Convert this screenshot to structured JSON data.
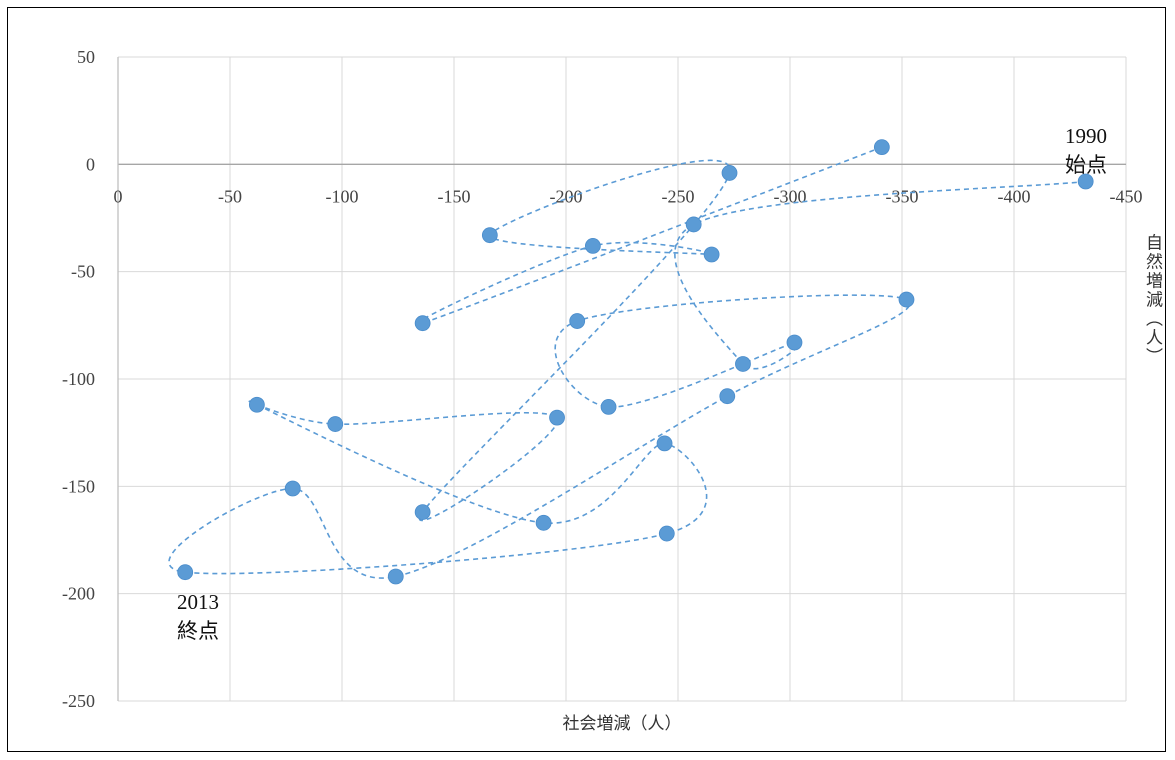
{
  "chart_data": {
    "type": "scatter",
    "xlabel": "社会増減（人）",
    "ylabel": "自然増減（人）",
    "xlim": [
      0,
      -450
    ],
    "ylim": [
      -250,
      50
    ],
    "x_ticks": [
      "0",
      "-50",
      "-100",
      "-150",
      "-200",
      "-250",
      "-300",
      "-350",
      "-400",
      "-450"
    ],
    "y_ticks": [
      "50",
      "0",
      "-50",
      "-100",
      "-150",
      "-200",
      "-250"
    ],
    "grid": true,
    "line_style": "dashed-smooth",
    "marker_color": "#5b9bd5",
    "points": [
      {
        "x": -432,
        "y": -8
      },
      {
        "x": -257,
        "y": -28
      },
      {
        "x": -279,
        "y": -93
      },
      {
        "x": -302,
        "y": -83
      },
      {
        "x": -219,
        "y": -113
      },
      {
        "x": -205,
        "y": -73
      },
      {
        "x": -352,
        "y": -63
      },
      {
        "x": -272,
        "y": -108
      },
      {
        "x": -124,
        "y": -192
      },
      {
        "x": -78,
        "y": -151
      },
      {
        "x": -30,
        "y": -190
      },
      {
        "x": -245,
        "y": -172
      },
      {
        "x": -244,
        "y": -130
      },
      {
        "x": -190,
        "y": -167
      },
      {
        "x": -62,
        "y": -112
      },
      {
        "x": -97,
        "y": -121
      },
      {
        "x": -196,
        "y": -118
      },
      {
        "x": -136,
        "y": -162
      },
      {
        "x": -273,
        "y": -4
      },
      {
        "x": -166,
        "y": -33
      },
      {
        "x": -265,
        "y": -42
      },
      {
        "x": -212,
        "y": -38
      },
      {
        "x": -136,
        "y": -74
      },
      {
        "x": -341,
        "y": 8
      }
    ],
    "annotations": [
      {
        "year": "1990",
        "label": "始点"
      },
      {
        "year": "2013",
        "label": "終点"
      }
    ]
  }
}
